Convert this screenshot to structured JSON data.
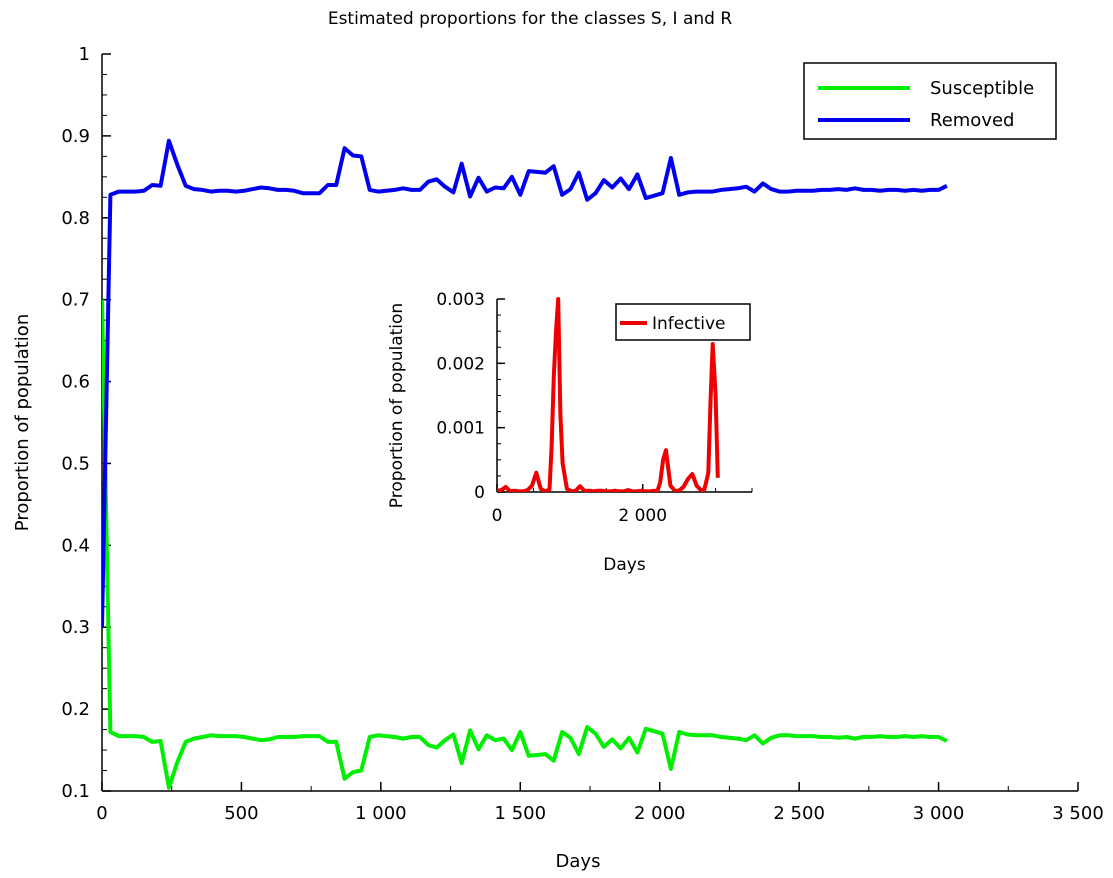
{
  "chart_data": [
    {
      "type": "line",
      "title": "Estimated proportions for the classes S, I and R",
      "xlabel": "Days",
      "ylabel": "Proportion of population",
      "xlim": [
        0,
        3500
      ],
      "ylim": [
        0.1,
        1
      ],
      "xticks": [
        0,
        500,
        1000,
        1500,
        2000,
        2500,
        3000,
        3500
      ],
      "xtick_labels": [
        "0",
        "500",
        "1 000",
        "1 500",
        "2 000",
        "2 500",
        "3 000",
        "3 500"
      ],
      "yticks": [
        0.1,
        0.2,
        0.3,
        0.4,
        0.5,
        0.6,
        0.7,
        0.8,
        0.9,
        1
      ],
      "ytick_labels": [
        "0.1",
        "0.2",
        "0.3",
        "0.4",
        "0.5",
        "0.6",
        "0.7",
        "0.8",
        "0.9",
        "1"
      ],
      "grid": false,
      "legend_position": "top-right",
      "series": [
        {
          "name": "Susceptible",
          "color": "#00ee00",
          "x": [
            0,
            30,
            60,
            90,
            120,
            150,
            180,
            210,
            240,
            270,
            300,
            330,
            360,
            390,
            420,
            450,
            480,
            510,
            540,
            570,
            600,
            630,
            660,
            690,
            720,
            750,
            780,
            810,
            840,
            870,
            900,
            930,
            960,
            990,
            1020,
            1050,
            1080,
            1110,
            1140,
            1170,
            1200,
            1230,
            1260,
            1290,
            1320,
            1350,
            1380,
            1410,
            1440,
            1470,
            1500,
            1530,
            1560,
            1590,
            1620,
            1650,
            1680,
            1710,
            1740,
            1770,
            1800,
            1830,
            1860,
            1890,
            1920,
            1950,
            1980,
            2010,
            2040,
            2070,
            2100,
            2130,
            2160,
            2190,
            2220,
            2250,
            2280,
            2310,
            2340,
            2370,
            2400,
            2430,
            2460,
            2490,
            2520,
            2550,
            2580,
            2610,
            2640,
            2670,
            2700,
            2730,
            2760,
            2790,
            2820,
            2850,
            2880,
            2910,
            2940,
            2970,
            3000,
            3030
          ],
          "y": [
            0.7,
            0.172,
            0.167,
            0.167,
            0.167,
            0.166,
            0.16,
            0.161,
            0.104,
            0.135,
            0.16,
            0.164,
            0.166,
            0.168,
            0.167,
            0.167,
            0.167,
            0.166,
            0.164,
            0.162,
            0.163,
            0.166,
            0.166,
            0.166,
            0.167,
            0.167,
            0.167,
            0.16,
            0.16,
            0.115,
            0.123,
            0.125,
            0.166,
            0.168,
            0.167,
            0.166,
            0.164,
            0.166,
            0.166,
            0.156,
            0.153,
            0.162,
            0.169,
            0.134,
            0.174,
            0.151,
            0.168,
            0.162,
            0.164,
            0.15,
            0.172,
            0.143,
            0.144,
            0.145,
            0.137,
            0.172,
            0.165,
            0.145,
            0.178,
            0.17,
            0.154,
            0.163,
            0.152,
            0.165,
            0.147,
            0.176,
            0.173,
            0.17,
            0.127,
            0.172,
            0.169,
            0.168,
            0.168,
            0.168,
            0.166,
            0.165,
            0.164,
            0.162,
            0.168,
            0.158,
            0.165,
            0.168,
            0.168,
            0.167,
            0.167,
            0.167,
            0.166,
            0.166,
            0.165,
            0.166,
            0.164,
            0.166,
            0.166,
            0.167,
            0.166,
            0.166,
            0.167,
            0.166,
            0.167,
            0.166,
            0.166,
            0.161
          ]
        },
        {
          "name": "Removed",
          "color": "#0000ee",
          "x": [
            0,
            30,
            60,
            90,
            120,
            150,
            180,
            210,
            240,
            270,
            300,
            330,
            360,
            390,
            420,
            450,
            480,
            510,
            540,
            570,
            600,
            630,
            660,
            690,
            720,
            750,
            780,
            810,
            840,
            870,
            900,
            930,
            960,
            990,
            1020,
            1050,
            1080,
            1110,
            1140,
            1170,
            1200,
            1230,
            1260,
            1290,
            1320,
            1350,
            1380,
            1410,
            1440,
            1470,
            1500,
            1530,
            1560,
            1590,
            1620,
            1650,
            1680,
            1710,
            1740,
            1770,
            1800,
            1830,
            1860,
            1890,
            1920,
            1950,
            1980,
            2010,
            2040,
            2070,
            2100,
            2130,
            2160,
            2190,
            2220,
            2250,
            2280,
            2310,
            2340,
            2370,
            2400,
            2430,
            2460,
            2490,
            2520,
            2550,
            2580,
            2610,
            2640,
            2670,
            2700,
            2730,
            2760,
            2790,
            2820,
            2850,
            2880,
            2910,
            2940,
            2970,
            3000,
            3030
          ],
          "y": [
            0.3,
            0.828,
            0.832,
            0.832,
            0.832,
            0.833,
            0.84,
            0.839,
            0.894,
            0.865,
            0.839,
            0.835,
            0.834,
            0.832,
            0.833,
            0.833,
            0.832,
            0.833,
            0.835,
            0.837,
            0.836,
            0.834,
            0.834,
            0.833,
            0.83,
            0.83,
            0.83,
            0.84,
            0.84,
            0.885,
            0.876,
            0.875,
            0.834,
            0.832,
            0.833,
            0.834,
            0.836,
            0.834,
            0.834,
            0.844,
            0.847,
            0.838,
            0.831,
            0.866,
            0.826,
            0.849,
            0.832,
            0.837,
            0.836,
            0.85,
            0.828,
            0.857,
            0.856,
            0.855,
            0.863,
            0.828,
            0.835,
            0.855,
            0.822,
            0.83,
            0.846,
            0.837,
            0.848,
            0.835,
            0.853,
            0.824,
            0.827,
            0.83,
            0.873,
            0.828,
            0.831,
            0.832,
            0.832,
            0.832,
            0.834,
            0.835,
            0.836,
            0.838,
            0.832,
            0.842,
            0.835,
            0.832,
            0.832,
            0.833,
            0.833,
            0.833,
            0.834,
            0.834,
            0.835,
            0.834,
            0.836,
            0.834,
            0.834,
            0.833,
            0.834,
            0.834,
            0.833,
            0.834,
            0.833,
            0.834,
            0.834,
            0.839
          ]
        }
      ]
    },
    {
      "type": "line",
      "title": "",
      "xlabel": "Days",
      "ylabel": "Proportion of population",
      "xlim": [
        0,
        3500
      ],
      "ylim": [
        0,
        0.003
      ],
      "xticks": [
        0,
        2000
      ],
      "xtick_labels": [
        "0",
        "2 000"
      ],
      "yticks": [
        0,
        0.001,
        0.002,
        0.003
      ],
      "ytick_labels": [
        "0",
        "0.001",
        "0.002",
        "0.003"
      ],
      "grid": false,
      "legend_position": "top-right",
      "series": [
        {
          "name": "Infective",
          "color": "#ee0000",
          "x": [
            0,
            60,
            120,
            180,
            240,
            300,
            360,
            420,
            480,
            540,
            600,
            660,
            720,
            750,
            780,
            810,
            840,
            870,
            900,
            960,
            1020,
            1080,
            1140,
            1200,
            1260,
            1320,
            1380,
            1440,
            1500,
            1560,
            1620,
            1680,
            1740,
            1800,
            1860,
            1920,
            1980,
            2040,
            2100,
            2160,
            2200,
            2240,
            2280,
            2320,
            2380,
            2440,
            2500,
            2560,
            2620,
            2680,
            2740,
            2800,
            2840,
            2870,
            2900,
            2930,
            2960,
            3000,
            3030
          ],
          "y": [
            2e-05,
            3e-05,
            8e-05,
            1e-05,
            2e-05,
            1e-05,
            1e-05,
            3e-05,
            0.0001,
            0.0003,
            5e-05,
            1e-05,
            4e-05,
            0.0007,
            0.0018,
            0.0025,
            0.003,
            0.0012,
            0.00045,
            5e-05,
            1e-05,
            2e-05,
            9e-05,
            2e-05,
            2e-05,
            1e-05,
            2e-05,
            2e-05,
            1e-05,
            1e-05,
            2e-05,
            1e-05,
            1e-05,
            3e-05,
            1e-05,
            1e-05,
            2e-05,
            1e-05,
            1e-05,
            2e-05,
            1e-05,
            0.00015,
            0.0005,
            0.00065,
            0.0001,
            2e-05,
            2e-05,
            8e-05,
            0.0002,
            0.00028,
            0.0001,
            3e-05,
            2e-05,
            0.00015,
            0.0003,
            0.0014,
            0.0023,
            0.0015,
            0.00022
          ]
        }
      ]
    }
  ]
}
